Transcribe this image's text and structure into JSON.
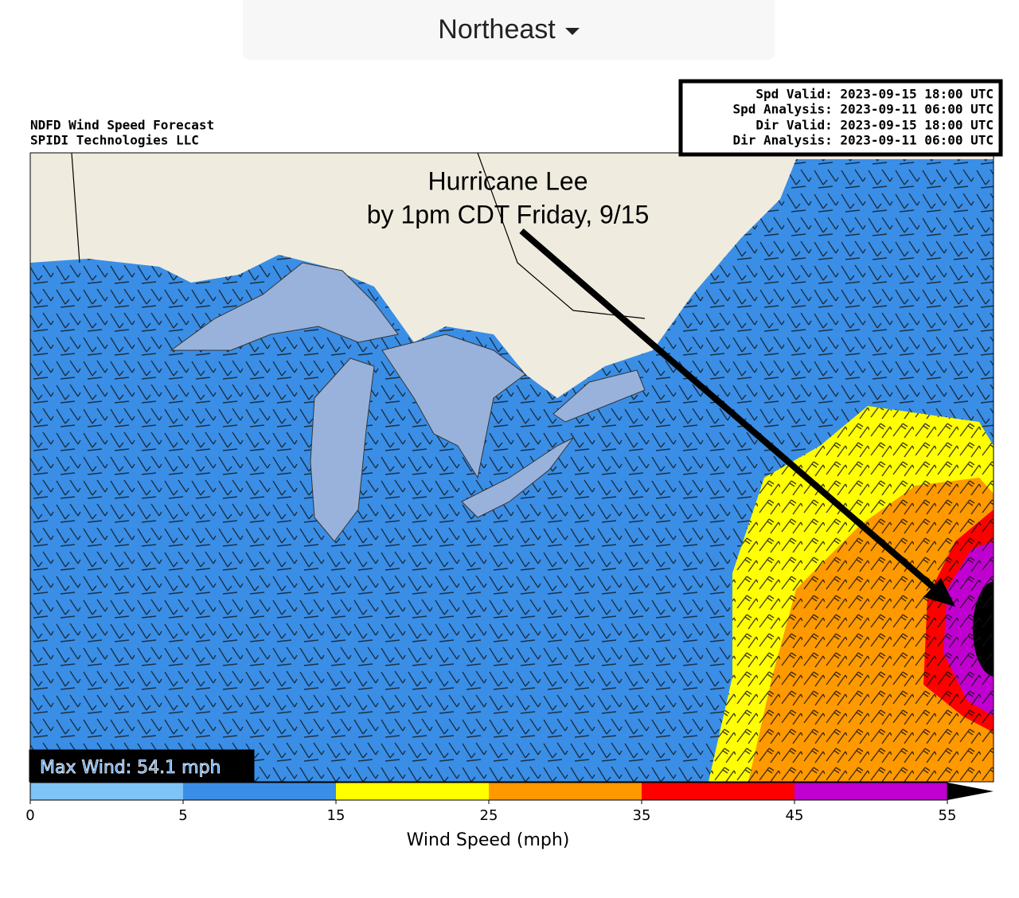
{
  "dropdown": {
    "label": "Northeast"
  },
  "header": {
    "lines": [
      "NDFD Wind Speed Forecast",
      "SPIDI Technologies LLC"
    ]
  },
  "info_box": {
    "lines": [
      "Spd Valid: 2023-09-15 18:00 UTC",
      "Spd Analysis: 2023-09-11 06:00 UTC",
      "Dir Valid: 2023-09-15 18:00 UTC",
      "Dir Analysis: 2023-09-11 06:00 UTC"
    ]
  },
  "annotation": {
    "lines": [
      "Hurricane Lee",
      "by 1pm CDT Friday, 9/15"
    ]
  },
  "max_wind": "Max Wind: 54.1 mph",
  "colorbar": {
    "ticks": [
      0,
      5,
      15,
      25,
      35,
      45,
      55
    ],
    "colors": [
      "#7ec4f7",
      "#3a8ee6",
      "#ffff00",
      "#ff9900",
      "#ff0000",
      "#c000d0"
    ],
    "extend_color": "#000000",
    "label": "Wind Speed (mph)"
  }
}
